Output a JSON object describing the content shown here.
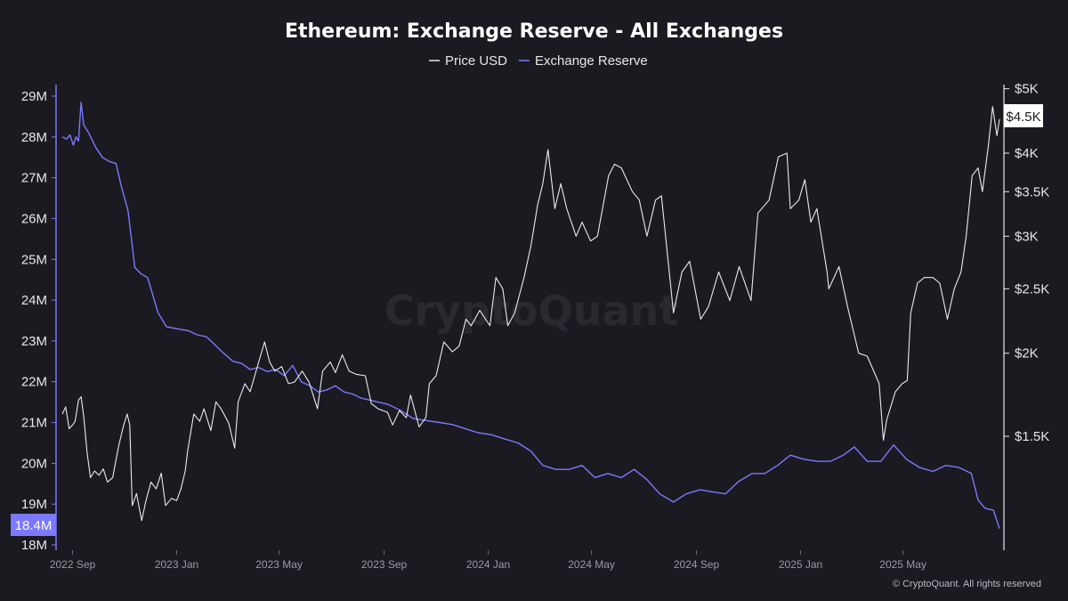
{
  "chart_data": {
    "type": "line",
    "title": "Ethereum: Exchange Reserve - All Exchanges",
    "legend": {
      "placement": "top-center",
      "entries": [
        "Price USD",
        "Exchange Reserve"
      ]
    },
    "watermark": "CryptoQuant",
    "copyright": "© CryptoQuant. All rights reserved",
    "x_axis": {
      "range": [
        "2022-08-20",
        "2025-08-22"
      ],
      "ticks": [
        {
          "date": "2022-09-01",
          "label": "2022 Sep"
        },
        {
          "date": "2023-01-01",
          "label": "2023 Jan"
        },
        {
          "date": "2023-05-01",
          "label": "2023 May"
        },
        {
          "date": "2023-09-01",
          "label": "2023 Sep"
        },
        {
          "date": "2024-01-01",
          "label": "2024 Jan"
        },
        {
          "date": "2024-05-01",
          "label": "2024 May"
        },
        {
          "date": "2024-09-01",
          "label": "2024 Sep"
        },
        {
          "date": "2025-01-01",
          "label": "2025 Jan"
        },
        {
          "date": "2025-05-01",
          "label": "2025 May"
        }
      ]
    },
    "y_left": {
      "range": [
        18,
        29.2
      ],
      "unit": "M",
      "ticks": [
        {
          "value": 18,
          "label": "18M"
        },
        {
          "value": 19,
          "label": "19M"
        },
        {
          "value": 20,
          "label": "20M"
        },
        {
          "value": 21,
          "label": "21M"
        },
        {
          "value": 22,
          "label": "22M"
        },
        {
          "value": 23,
          "label": "23M"
        },
        {
          "value": 24,
          "label": "24M"
        },
        {
          "value": 25,
          "label": "25M"
        },
        {
          "value": 26,
          "label": "26M"
        },
        {
          "value": 27,
          "label": "27M"
        },
        {
          "value": 28,
          "label": "28M"
        },
        {
          "value": 29,
          "label": "29M"
        }
      ],
      "current_value_label": "18.4M",
      "current_value": 18.4
    },
    "y_right": {
      "scale": "log",
      "range": [
        1050,
        5000
      ],
      "ticks": [
        {
          "value": 1500,
          "label": "$1.5K"
        },
        {
          "value": 2000,
          "label": "$2K"
        },
        {
          "value": 2500,
          "label": "$2.5K"
        },
        {
          "value": 3000,
          "label": "$3K"
        },
        {
          "value": 3500,
          "label": "$3.5K"
        },
        {
          "value": 4000,
          "label": "$4K"
        },
        {
          "value": 5000,
          "label": "$5K"
        }
      ],
      "current_value_label": "$4.5K",
      "current_value": 4500
    },
    "series": [
      {
        "name": "Price USD",
        "axis": "right",
        "color": "#e9e9ee",
        "points": [
          [
            "2022-08-20",
            1620
          ],
          [
            "2022-08-24",
            1660
          ],
          [
            "2022-08-28",
            1540
          ],
          [
            "2022-09-01",
            1560
          ],
          [
            "2022-09-04",
            1580
          ],
          [
            "2022-09-08",
            1700
          ],
          [
            "2022-09-11",
            1720
          ],
          [
            "2022-09-14",
            1610
          ],
          [
            "2022-09-18",
            1420
          ],
          [
            "2022-09-22",
            1300
          ],
          [
            "2022-09-27",
            1330
          ],
          [
            "2022-10-02",
            1310
          ],
          [
            "2022-10-07",
            1340
          ],
          [
            "2022-10-12",
            1280
          ],
          [
            "2022-10-18",
            1300
          ],
          [
            "2022-10-25",
            1450
          ],
          [
            "2022-10-31",
            1560
          ],
          [
            "2022-11-04",
            1620
          ],
          [
            "2022-11-07",
            1560
          ],
          [
            "2022-11-10",
            1180
          ],
          [
            "2022-11-15",
            1230
          ],
          [
            "2022-11-21",
            1120
          ],
          [
            "2022-11-26",
            1200
          ],
          [
            "2022-12-02",
            1280
          ],
          [
            "2022-12-08",
            1250
          ],
          [
            "2022-12-14",
            1320
          ],
          [
            "2022-12-19",
            1180
          ],
          [
            "2022-12-26",
            1210
          ],
          [
            "2023-01-01",
            1200
          ],
          [
            "2023-01-06",
            1250
          ],
          [
            "2023-01-11",
            1330
          ],
          [
            "2023-01-14",
            1430
          ],
          [
            "2023-01-21",
            1620
          ],
          [
            "2023-01-28",
            1580
          ],
          [
            "2023-02-02",
            1650
          ],
          [
            "2023-02-10",
            1530
          ],
          [
            "2023-02-16",
            1690
          ],
          [
            "2023-02-22",
            1650
          ],
          [
            "2023-03-03",
            1570
          ],
          [
            "2023-03-10",
            1440
          ],
          [
            "2023-03-14",
            1690
          ],
          [
            "2023-03-22",
            1800
          ],
          [
            "2023-03-28",
            1750
          ],
          [
            "2023-04-05",
            1900
          ],
          [
            "2023-04-14",
            2080
          ],
          [
            "2023-04-20",
            1940
          ],
          [
            "2023-04-26",
            1880
          ],
          [
            "2023-05-04",
            1910
          ],
          [
            "2023-05-12",
            1800
          ],
          [
            "2023-05-19",
            1810
          ],
          [
            "2023-05-28",
            1880
          ],
          [
            "2023-06-05",
            1810
          ],
          [
            "2023-06-15",
            1650
          ],
          [
            "2023-06-21",
            1880
          ],
          [
            "2023-06-30",
            1940
          ],
          [
            "2023-07-06",
            1870
          ],
          [
            "2023-07-14",
            1990
          ],
          [
            "2023-07-22",
            1880
          ],
          [
            "2023-07-30",
            1860
          ],
          [
            "2023-08-10",
            1850
          ],
          [
            "2023-08-17",
            1680
          ],
          [
            "2023-08-25",
            1650
          ],
          [
            "2023-09-05",
            1630
          ],
          [
            "2023-09-11",
            1560
          ],
          [
            "2023-09-19",
            1640
          ],
          [
            "2023-09-27",
            1600
          ],
          [
            "2023-10-02",
            1730
          ],
          [
            "2023-10-12",
            1550
          ],
          [
            "2023-10-20",
            1600
          ],
          [
            "2023-10-24",
            1800
          ],
          [
            "2023-11-01",
            1850
          ],
          [
            "2023-11-10",
            2080
          ],
          [
            "2023-11-20",
            2010
          ],
          [
            "2023-11-28",
            2050
          ],
          [
            "2023-12-06",
            2250
          ],
          [
            "2023-12-12",
            2200
          ],
          [
            "2023-12-22",
            2320
          ],
          [
            "2024-01-03",
            2200
          ],
          [
            "2024-01-10",
            2600
          ],
          [
            "2024-01-18",
            2500
          ],
          [
            "2024-01-24",
            2200
          ],
          [
            "2024-02-01",
            2300
          ],
          [
            "2024-02-12",
            2600
          ],
          [
            "2024-02-20",
            2900
          ],
          [
            "2024-02-28",
            3350
          ],
          [
            "2024-03-05",
            3600
          ],
          [
            "2024-03-11",
            4050
          ],
          [
            "2024-03-19",
            3300
          ],
          [
            "2024-03-26",
            3600
          ],
          [
            "2024-04-02",
            3300
          ],
          [
            "2024-04-13",
            3000
          ],
          [
            "2024-04-20",
            3150
          ],
          [
            "2024-04-30",
            2950
          ],
          [
            "2024-05-08",
            3000
          ],
          [
            "2024-05-21",
            3700
          ],
          [
            "2024-05-28",
            3850
          ],
          [
            "2024-06-05",
            3800
          ],
          [
            "2024-06-18",
            3500
          ],
          [
            "2024-06-26",
            3400
          ],
          [
            "2024-07-05",
            3000
          ],
          [
            "2024-07-15",
            3400
          ],
          [
            "2024-07-22",
            3450
          ],
          [
            "2024-08-05",
            2300
          ],
          [
            "2024-08-15",
            2650
          ],
          [
            "2024-08-24",
            2750
          ],
          [
            "2024-09-06",
            2250
          ],
          [
            "2024-09-15",
            2350
          ],
          [
            "2024-09-27",
            2650
          ],
          [
            "2024-10-10",
            2400
          ],
          [
            "2024-10-21",
            2700
          ],
          [
            "2024-11-04",
            2400
          ],
          [
            "2024-11-12",
            3250
          ],
          [
            "2024-11-25",
            3400
          ],
          [
            "2024-12-06",
            3950
          ],
          [
            "2024-12-16",
            4000
          ],
          [
            "2024-12-20",
            3300
          ],
          [
            "2024-12-30",
            3400
          ],
          [
            "2025-01-06",
            3650
          ],
          [
            "2025-01-13",
            3150
          ],
          [
            "2025-01-20",
            3300
          ],
          [
            "2025-02-01",
            2650
          ],
          [
            "2025-02-03",
            2500
          ],
          [
            "2025-02-15",
            2700
          ],
          [
            "2025-02-25",
            2350
          ],
          [
            "2025-03-10",
            2000
          ],
          [
            "2025-03-20",
            1980
          ],
          [
            "2025-04-03",
            1800
          ],
          [
            "2025-04-08",
            1480
          ],
          [
            "2025-04-12",
            1590
          ],
          [
            "2025-04-22",
            1750
          ],
          [
            "2025-04-30",
            1800
          ],
          [
            "2025-05-06",
            1820
          ],
          [
            "2025-05-10",
            2300
          ],
          [
            "2025-05-18",
            2550
          ],
          [
            "2025-05-26",
            2600
          ],
          [
            "2025-06-05",
            2600
          ],
          [
            "2025-06-13",
            2550
          ],
          [
            "2025-06-22",
            2250
          ],
          [
            "2025-06-30",
            2500
          ],
          [
            "2025-07-08",
            2650
          ],
          [
            "2025-07-14",
            3000
          ],
          [
            "2025-07-21",
            3700
          ],
          [
            "2025-07-28",
            3800
          ],
          [
            "2025-08-02",
            3500
          ],
          [
            "2025-08-09",
            4100
          ],
          [
            "2025-08-14",
            4700
          ],
          [
            "2025-08-19",
            4250
          ],
          [
            "2025-08-22",
            4500
          ]
        ]
      },
      {
        "name": "Exchange Reserve",
        "axis": "left",
        "color": "#7c78ff",
        "points": [
          [
            "2022-08-20",
            28.0
          ],
          [
            "2022-08-25",
            27.95
          ],
          [
            "2022-08-29",
            28.05
          ],
          [
            "2022-09-02",
            27.8
          ],
          [
            "2022-09-05",
            28.0
          ],
          [
            "2022-09-08",
            27.9
          ],
          [
            "2022-09-11",
            28.85
          ],
          [
            "2022-09-14",
            28.3
          ],
          [
            "2022-09-20",
            28.1
          ],
          [
            "2022-09-28",
            27.75
          ],
          [
            "2022-10-06",
            27.5
          ],
          [
            "2022-10-14",
            27.4
          ],
          [
            "2022-10-22",
            27.35
          ],
          [
            "2022-10-28",
            26.8
          ],
          [
            "2022-11-05",
            26.2
          ],
          [
            "2022-11-09",
            25.5
          ],
          [
            "2022-11-13",
            24.8
          ],
          [
            "2022-11-20",
            24.65
          ],
          [
            "2022-11-28",
            24.55
          ],
          [
            "2022-12-03",
            24.2
          ],
          [
            "2022-12-10",
            23.7
          ],
          [
            "2022-12-20",
            23.35
          ],
          [
            "2023-01-01",
            23.3
          ],
          [
            "2023-01-15",
            23.25
          ],
          [
            "2023-01-25",
            23.15
          ],
          [
            "2023-02-05",
            23.1
          ],
          [
            "2023-02-15",
            22.9
          ],
          [
            "2023-02-25",
            22.7
          ],
          [
            "2023-03-08",
            22.5
          ],
          [
            "2023-03-18",
            22.45
          ],
          [
            "2023-03-28",
            22.3
          ],
          [
            "2023-04-07",
            22.35
          ],
          [
            "2023-04-17",
            22.25
          ],
          [
            "2023-04-27",
            22.3
          ],
          [
            "2023-05-07",
            22.15
          ],
          [
            "2023-05-17",
            22.4
          ],
          [
            "2023-05-27",
            22.0
          ],
          [
            "2023-06-06",
            21.9
          ],
          [
            "2023-06-16",
            21.75
          ],
          [
            "2023-06-26",
            21.8
          ],
          [
            "2023-07-06",
            21.9
          ],
          [
            "2023-07-16",
            21.75
          ],
          [
            "2023-07-26",
            21.7
          ],
          [
            "2023-08-05",
            21.6
          ],
          [
            "2023-08-15",
            21.55
          ],
          [
            "2023-08-25",
            21.5
          ],
          [
            "2023-09-05",
            21.45
          ],
          [
            "2023-09-20",
            21.3
          ],
          [
            "2023-10-05",
            21.1
          ],
          [
            "2023-10-20",
            21.05
          ],
          [
            "2023-11-05",
            21.0
          ],
          [
            "2023-11-20",
            20.95
          ],
          [
            "2023-12-05",
            20.85
          ],
          [
            "2023-12-20",
            20.75
          ],
          [
            "2024-01-05",
            20.7
          ],
          [
            "2024-01-20",
            20.6
          ],
          [
            "2024-02-05",
            20.5
          ],
          [
            "2024-02-20",
            20.3
          ],
          [
            "2024-03-05",
            19.95
          ],
          [
            "2024-03-20",
            19.85
          ],
          [
            "2024-04-05",
            19.85
          ],
          [
            "2024-04-20",
            19.95
          ],
          [
            "2024-05-05",
            19.65
          ],
          [
            "2024-05-20",
            19.75
          ],
          [
            "2024-06-05",
            19.65
          ],
          [
            "2024-06-20",
            19.85
          ],
          [
            "2024-07-05",
            19.6
          ],
          [
            "2024-07-20",
            19.25
          ],
          [
            "2024-08-05",
            19.05
          ],
          [
            "2024-08-20",
            19.25
          ],
          [
            "2024-09-05",
            19.35
          ],
          [
            "2024-09-20",
            19.3
          ],
          [
            "2024-10-05",
            19.25
          ],
          [
            "2024-10-20",
            19.55
          ],
          [
            "2024-11-05",
            19.75
          ],
          [
            "2024-11-20",
            19.75
          ],
          [
            "2024-12-05",
            19.95
          ],
          [
            "2024-12-20",
            20.2
          ],
          [
            "2025-01-05",
            20.1
          ],
          [
            "2025-01-20",
            20.05
          ],
          [
            "2025-02-05",
            20.05
          ],
          [
            "2025-02-20",
            20.2
          ],
          [
            "2025-03-05",
            20.4
          ],
          [
            "2025-03-20",
            20.05
          ],
          [
            "2025-04-05",
            20.05
          ],
          [
            "2025-04-20",
            20.45
          ],
          [
            "2025-05-05",
            20.1
          ],
          [
            "2025-05-20",
            19.9
          ],
          [
            "2025-06-05",
            19.8
          ],
          [
            "2025-06-20",
            19.95
          ],
          [
            "2025-07-05",
            19.9
          ],
          [
            "2025-07-20",
            19.75
          ],
          [
            "2025-07-28",
            19.1
          ],
          [
            "2025-08-05",
            18.9
          ],
          [
            "2025-08-15",
            18.85
          ],
          [
            "2025-08-22",
            18.4
          ]
        ]
      }
    ]
  }
}
